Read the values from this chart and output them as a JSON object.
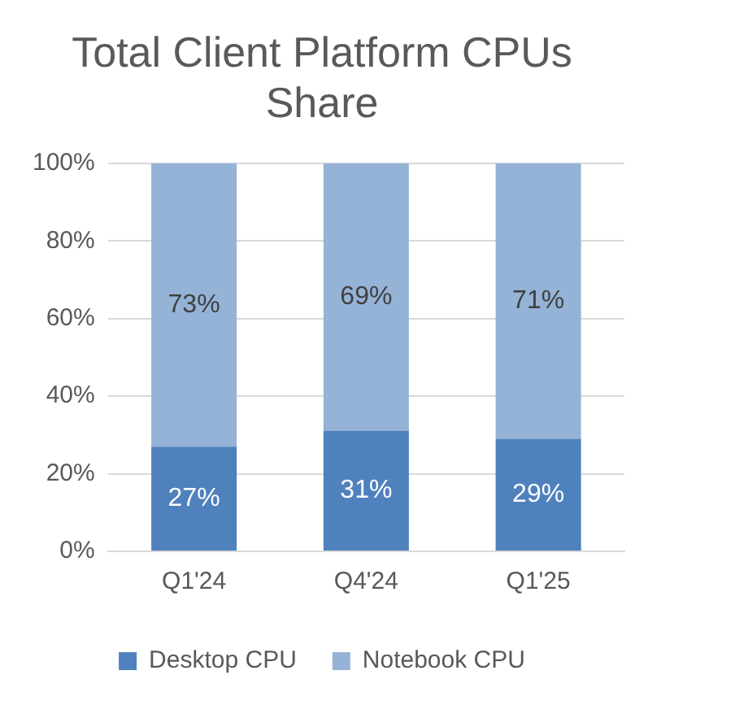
{
  "chart_data": {
    "type": "bar",
    "title": "Total Client Platform CPUs Share",
    "stacked": true,
    "categories": [
      "Q1'24",
      "Q4'24",
      "Q1'25"
    ],
    "series": [
      {
        "name": "Desktop CPU",
        "color": "#4f81bd",
        "values": [
          27,
          31,
          29
        ],
        "value_labels": [
          "27%",
          "31%",
          "29%"
        ]
      },
      {
        "name": "Notebook CPU",
        "color": "#95b3d7",
        "values": [
          73,
          69,
          71
        ],
        "value_labels": [
          "73%",
          "69%",
          "71%"
        ]
      }
    ],
    "ylim": [
      0,
      100
    ],
    "yticks": [
      {
        "value": 0,
        "label": "0%"
      },
      {
        "value": 20,
        "label": "20%"
      },
      {
        "value": 40,
        "label": "40%"
      },
      {
        "value": 60,
        "label": "60%"
      },
      {
        "value": 80,
        "label": "80%"
      },
      {
        "value": 100,
        "label": "100%"
      }
    ],
    "grid": "y",
    "legend": "bottom"
  }
}
